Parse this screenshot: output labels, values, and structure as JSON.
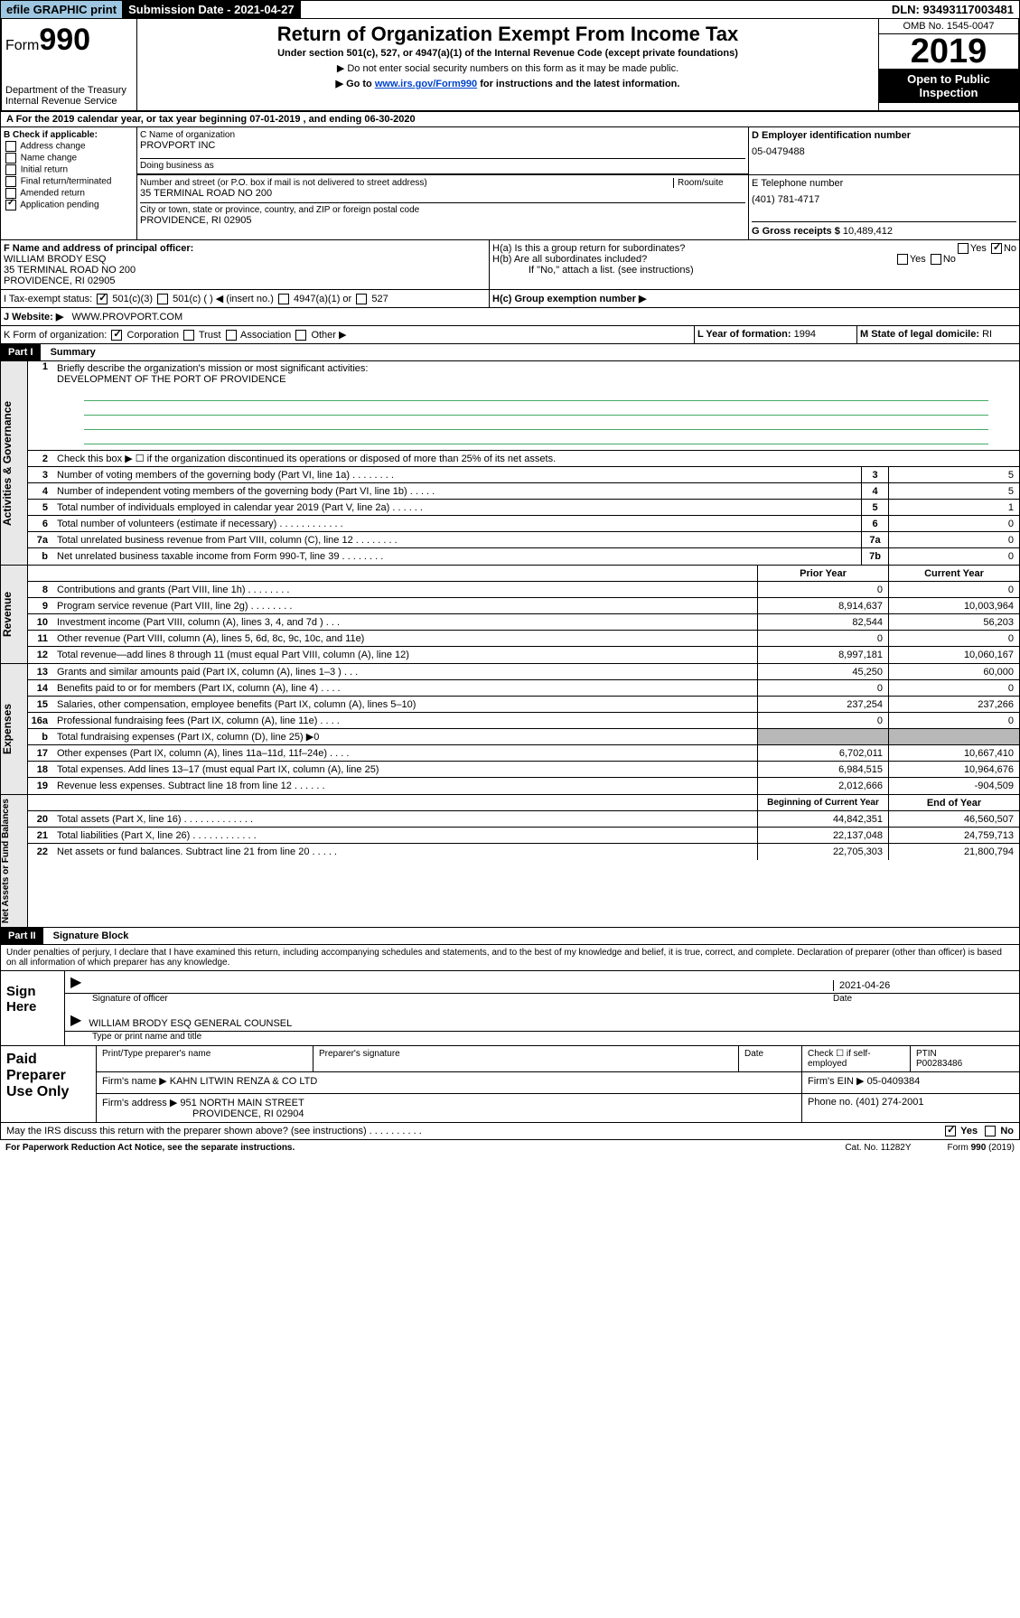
{
  "topbar": {
    "efile": "efile GRAPHIC print",
    "sub_date_label": "Submission Date - 2021-04-27",
    "dln": "DLN: 93493117003481"
  },
  "header": {
    "form_prefix": "Form",
    "form_no": "990",
    "dept": "Department of the Treasury",
    "irs": "Internal Revenue Service",
    "title": "Return of Organization Exempt From Income Tax",
    "subtitle": "Under section 501(c), 527, or 4947(a)(1) of the Internal Revenue Code (except private foundations)",
    "note1": "▶ Do not enter social security numbers on this form as it may be made public.",
    "note2_pre": "▶ Go to ",
    "note2_link": "www.irs.gov/Form990",
    "note2_post": " for instructions and the latest information.",
    "omb": "OMB No. 1545-0047",
    "year": "2019",
    "open": "Open to Public",
    "inspection": "Inspection"
  },
  "line_a": "A   For the 2019 calendar year, or tax year beginning 07-01-2019    , and ending 06-30-2020",
  "section_b": {
    "label": "B Check if applicable:",
    "opts": [
      "Address change",
      "Name change",
      "Initial return",
      "Final return/terminated",
      "Amended return",
      "Application pending"
    ]
  },
  "section_c": {
    "name_label": "C Name of organization",
    "name": "PROVPORT INC",
    "dba_label": "Doing business as",
    "addr_label": "Number and street (or P.O. box if mail is not delivered to street address)",
    "room_label": "Room/suite",
    "addr": "35 TERMINAL ROAD NO 200",
    "city_label": "City or town, state or province, country, and ZIP or foreign postal code",
    "city": "PROVIDENCE, RI  02905"
  },
  "section_d": {
    "label": "D Employer identification number",
    "ein": "05-0479488"
  },
  "section_e": {
    "label": "E Telephone number",
    "tel": "(401) 781-4717"
  },
  "section_g": {
    "label": "G Gross receipts $",
    "val": "10,489,412"
  },
  "section_f": {
    "label": "F  Name and address of principal officer:",
    "name": "WILLIAM BRODY ESQ",
    "addr1": "35 TERMINAL ROAD NO 200",
    "addr2": "PROVIDENCE, RI  02905"
  },
  "section_h": {
    "ha": "H(a)  Is this a group return for subordinates?",
    "hb": "H(b)  Are all subordinates included?",
    "hb_note": "If \"No,\" attach a list. (see instructions)",
    "hc": "H(c)  Group exemption number ▶"
  },
  "section_i": {
    "label": "I     Tax-exempt status:",
    "c3": "501(c)(3)",
    "c": "501(c) (  ) ◀ (insert no.)",
    "a1": "4947(a)(1) or",
    "s527": "527"
  },
  "section_j": {
    "label": "J     Website: ▶",
    "val": "WWW.PROVPORT.COM"
  },
  "section_k": {
    "label": "K Form of organization:",
    "corp": "Corporation",
    "trust": "Trust",
    "assoc": "Association",
    "other": "Other ▶"
  },
  "section_l": {
    "label": "L Year of formation:",
    "val": "1994"
  },
  "section_m": {
    "label": "M State of legal domicile:",
    "val": "RI"
  },
  "part1": {
    "header": "Part I",
    "title": "Summary",
    "q1": "Briefly describe the organization's mission or most significant activities:",
    "mission": "DEVELOPMENT OF THE PORT OF PROVIDENCE",
    "q2": "Check this box ▶ ☐  if the organization discontinued its operations or disposed of more than 25% of its net assets.",
    "rows_gov": [
      {
        "n": "3",
        "label": "Number of voting members of the governing body (Part VI, line 1a)   .    .    .    .    .    .    .    .",
        "box": "3",
        "v2": "5"
      },
      {
        "n": "4",
        "label": "Number of independent voting members of the governing body (Part VI, line 1b)  .    .    .    .    .",
        "box": "4",
        "v2": "5"
      },
      {
        "n": "5",
        "label": "Total number of individuals employed in calendar year 2019 (Part V, line 2a)  .    .    .    .    .    .",
        "box": "5",
        "v2": "1"
      },
      {
        "n": "6",
        "label": "Total number of volunteers (estimate if necessary)   .    .    .    .    .    .    .    .    .    .    .    .",
        "box": "6",
        "v2": "0"
      },
      {
        "n": "7a",
        "label": "Total unrelated business revenue from Part VIII, column (C), line 12  .    .    .    .    .    .    .    .",
        "box": "7a",
        "v2": "0"
      },
      {
        "n": "b",
        "label": "Net unrelated business taxable income from Form 990-T, line 39   .    .    .    .    .    .    .    .",
        "box": "7b",
        "v2": "0"
      }
    ],
    "col_prior": "Prior Year",
    "col_current": "Current Year",
    "rows_rev": [
      {
        "n": "8",
        "label": "Contributions and grants (Part VIII, line 1h)   .    .    .    .    .    .    .    .",
        "v1": "0",
        "v2": "0"
      },
      {
        "n": "9",
        "label": "Program service revenue (Part VIII, line 2g)    .    .    .    .    .    .    .    .",
        "v1": "8,914,637",
        "v2": "10,003,964"
      },
      {
        "n": "10",
        "label": "Investment income (Part VIII, column (A), lines 3, 4, and 7d )   .    .    .",
        "v1": "82,544",
        "v2": "56,203"
      },
      {
        "n": "11",
        "label": "Other revenue (Part VIII, column (A), lines 5, 6d, 8c, 9c, 10c, and 11e)",
        "v1": "0",
        "v2": "0"
      },
      {
        "n": "12",
        "label": "Total revenue—add lines 8 through 11 (must equal Part VIII, column (A), line 12)",
        "v1": "8,997,181",
        "v2": "10,060,167"
      }
    ],
    "rows_exp": [
      {
        "n": "13",
        "label": "Grants and similar amounts paid (Part IX, column (A), lines 1–3 )   .    .    .",
        "v1": "45,250",
        "v2": "60,000"
      },
      {
        "n": "14",
        "label": "Benefits paid to or for members (Part IX, column (A), line 4)   .    .    .    .",
        "v1": "0",
        "v2": "0"
      },
      {
        "n": "15",
        "label": "Salaries, other compensation, employee benefits (Part IX, column (A), lines 5–10)",
        "v1": "237,254",
        "v2": "237,266"
      },
      {
        "n": "16a",
        "label": "Professional fundraising fees (Part IX, column (A), line 11e)   .    .    .    .",
        "v1": "0",
        "v2": "0"
      },
      {
        "n": "b",
        "label": "Total fundraising expenses (Part IX, column (D), line 25) ▶0",
        "v1": "",
        "v2": "",
        "grey": true
      },
      {
        "n": "17",
        "label": "Other expenses (Part IX, column (A), lines 11a–11d, 11f–24e)   .    .    .    .",
        "v1": "6,702,011",
        "v2": "10,667,410"
      },
      {
        "n": "18",
        "label": "Total expenses. Add lines 13–17 (must equal Part IX, column (A), line 25)",
        "v1": "6,984,515",
        "v2": "10,964,676"
      },
      {
        "n": "19",
        "label": "Revenue less expenses. Subtract line 18 from line 12  .    .    .    .    .    .",
        "v1": "2,012,666",
        "v2": "-904,509"
      }
    ],
    "col_begin": "Beginning of Current Year",
    "col_end": "End of Year",
    "rows_net": [
      {
        "n": "20",
        "label": "Total assets (Part X, line 16)   .    .    .    .    .    .    .    .    .    .    .    .    .",
        "v1": "44,842,351",
        "v2": "46,560,507"
      },
      {
        "n": "21",
        "label": "Total liabilities (Part X, line 26)   .    .    .    .    .    .    .    .    .    .    .    .",
        "v1": "22,137,048",
        "v2": "24,759,713"
      },
      {
        "n": "22",
        "label": "Net assets or fund balances. Subtract line 21 from line 20  .    .    .    .    .",
        "v1": "22,705,303",
        "v2": "21,800,794"
      }
    ],
    "side_gov": "Activities & Governance",
    "side_rev": "Revenue",
    "side_exp": "Expenses",
    "side_net": "Net Assets or Fund Balances"
  },
  "part2": {
    "header": "Part II",
    "title": "Signature Block",
    "perjury": "Under penalties of perjury, I declare that I have examined this return, including accompanying schedules and statements, and to the best of my knowledge and belief, it is true, correct, and complete. Declaration of preparer (other than officer) is based on all information of which preparer has any knowledge.",
    "sign_here": "Sign Here",
    "sig_date": "2021-04-26",
    "sig_of_officer": "Signature of officer",
    "date_label": "Date",
    "officer_name": "WILLIAM BRODY ESQ  GENERAL COUNSEL",
    "type_name": "Type or print name and title",
    "paid": "Paid Preparer Use Only",
    "prep_name_label": "Print/Type preparer's name",
    "prep_sig_label": "Preparer's signature",
    "check_label": "Check ☐ if self-employed",
    "ptin_label": "PTIN",
    "ptin": "P00283486",
    "firm_name_label": "Firm's name     ▶",
    "firm_name": "KAHN LITWIN RENZA & CO LTD",
    "firm_ein_label": "Firm's EIN ▶",
    "firm_ein": "05-0409384",
    "firm_addr_label": "Firm's address ▶",
    "firm_addr1": "951 NORTH MAIN STREET",
    "firm_addr2": "PROVIDENCE, RI  02904",
    "phone_label": "Phone no.",
    "phone": "(401) 274-2001",
    "discuss": "May the IRS discuss this return with the preparer shown above? (see instructions)    .    .    .    .    .    .    .    .    .    .",
    "yes": "Yes",
    "no": "No"
  },
  "footer": {
    "paperwork": "For Paperwork Reduction Act Notice, see the separate instructions.",
    "cat": "Cat. No. 11282Y",
    "form": "Form 990 (2019)"
  }
}
